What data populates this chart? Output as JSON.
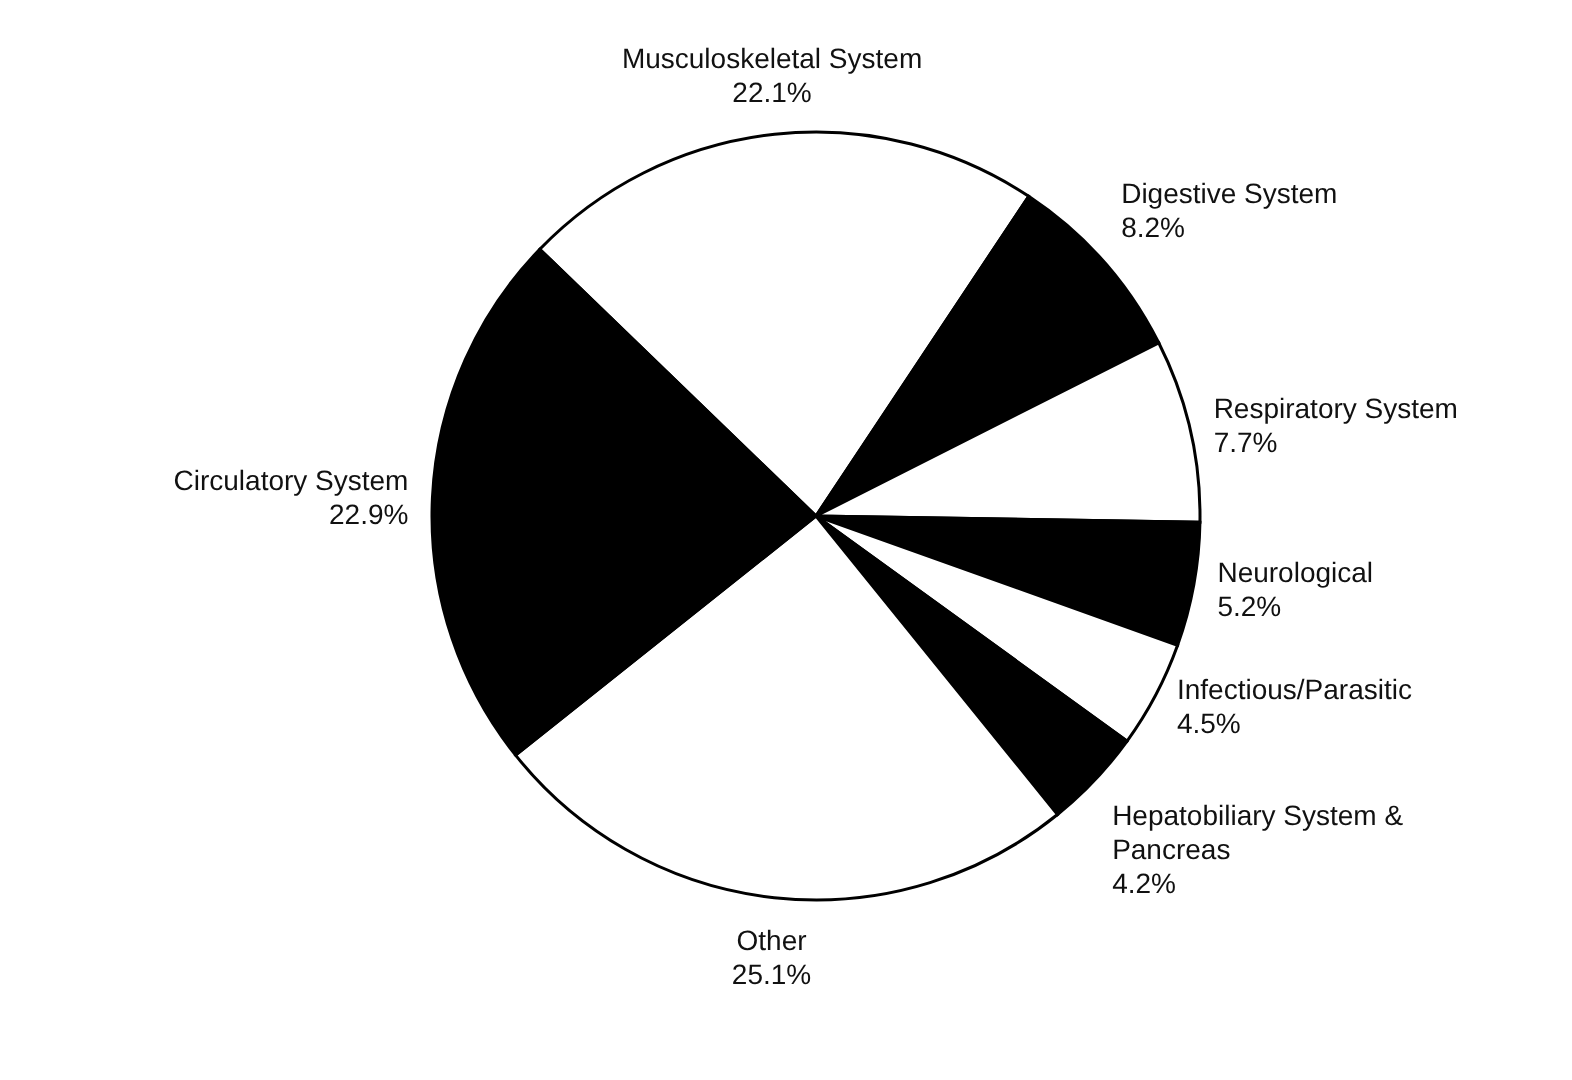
{
  "chart_data": {
    "type": "pie",
    "categories": [
      "Musculoskeletal System",
      "Digestive System",
      "Respiratory System",
      "Neurological",
      "Infectious/Parasitic",
      "Hepatobiliary System & Pancreas",
      "Other",
      "Circulatory System"
    ],
    "values": [
      22.1,
      8.2,
      7.7,
      5.2,
      4.5,
      4.2,
      25.1,
      22.9
    ],
    "colors": [
      "#ffffff",
      "#000000",
      "#ffffff",
      "#000000",
      "#ffffff",
      "#000000",
      "#ffffff",
      "#000000"
    ],
    "value_labels": [
      "22.1%",
      "8.2%",
      "7.7%",
      "5.2%",
      "4.5%",
      "4.2%",
      "25.1%",
      "22.9%"
    ]
  }
}
